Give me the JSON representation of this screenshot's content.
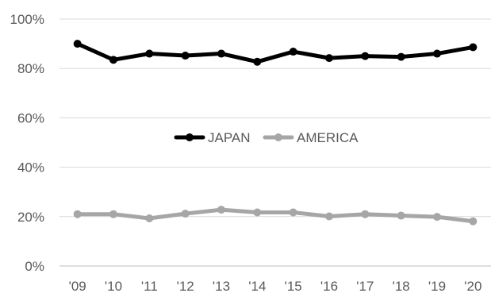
{
  "chart_data": {
    "type": "line",
    "title": "",
    "xlabel": "",
    "ylabel": "",
    "categories": [
      "'09",
      "'10",
      "'11",
      "'12",
      "'13",
      "'14",
      "'15",
      "'16",
      "'17",
      "'18",
      "'19",
      "'20"
    ],
    "ylim": [
      0,
      100
    ],
    "y_ticks": [
      "0%",
      "20%",
      "40%",
      "60%",
      "80%",
      "100%"
    ],
    "grid": "horizontal",
    "legend_position": "center",
    "series": [
      {
        "name": "JAPAN",
        "color": "#000000",
        "values": [
          90,
          83.5,
          86,
          85.2,
          86,
          82.7,
          86.8,
          84.2,
          85,
          84.7,
          86,
          88.6
        ]
      },
      {
        "name": "AMERICA",
        "color": "#a6a6a6",
        "values": [
          21,
          21,
          19.3,
          21.2,
          22.8,
          21.7,
          21.7,
          20.1,
          21,
          20.4,
          19.9,
          18.1
        ]
      }
    ]
  }
}
